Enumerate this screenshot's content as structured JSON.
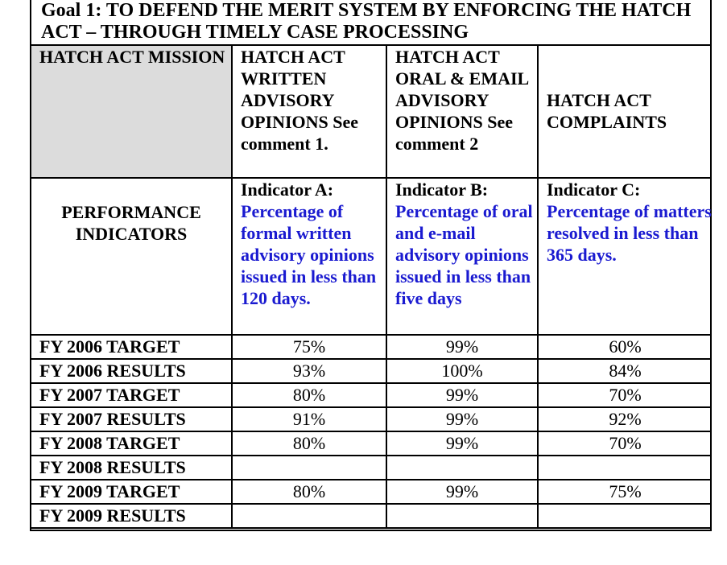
{
  "goal_title": "Goal 1:  TO DEFEND THE MERIT SYSTEM BY ENFORCING THE HATCH ACT – THROUGH TIMELY CASE PROCESSING",
  "header": {
    "mission": "HATCH ACT MISSION",
    "col_a": "HATCH ACT WRITTEN ADVISORY OPINIONS See comment 1.",
    "col_b": "HATCH ACT ORAL & EMAIL ADVISORY OPINIONS See comment 2",
    "col_c": "HATCH ACT COMPLAINTS"
  },
  "indicators": {
    "row_label": "PERFORMANCE INDICATORS",
    "a_label": "Indicator A:",
    "a_text": "Percentage of formal written advisory opinions issued in less than 120 days.",
    "b_label": "Indicator B:",
    "b_text": "Percentage of oral and e-mail advisory opinions issued in less than five days",
    "c_label": "Indicator C:",
    "c_text": "Percentage of matters resolved in less than 365 days."
  },
  "rows": [
    {
      "label": "FY 2006 TARGET",
      "a": "75%",
      "b": "99%",
      "c": "60%"
    },
    {
      "label": "FY 2006 RESULTS",
      "a": "93%",
      "b": "100%",
      "c": "84%"
    },
    {
      "label": "FY 2007 TARGET",
      "a": "80%",
      "b": "99%",
      "c": "70%"
    },
    {
      "label": "FY 2007 RESULTS",
      "a": "91%",
      "b": "99%",
      "c": "92%"
    },
    {
      "label": "FY 2008 TARGET",
      "a": "80%",
      "b": "99%",
      "c": "70%"
    },
    {
      "label": "FY 2008 RESULTS",
      "a": "",
      "b": "",
      "c": ""
    },
    {
      "label": "FY 2009 TARGET",
      "a": "80%",
      "b": "99%",
      "c": "75%"
    },
    {
      "label": "FY 2009 RESULTS",
      "a": "",
      "b": "",
      "c": ""
    }
  ]
}
